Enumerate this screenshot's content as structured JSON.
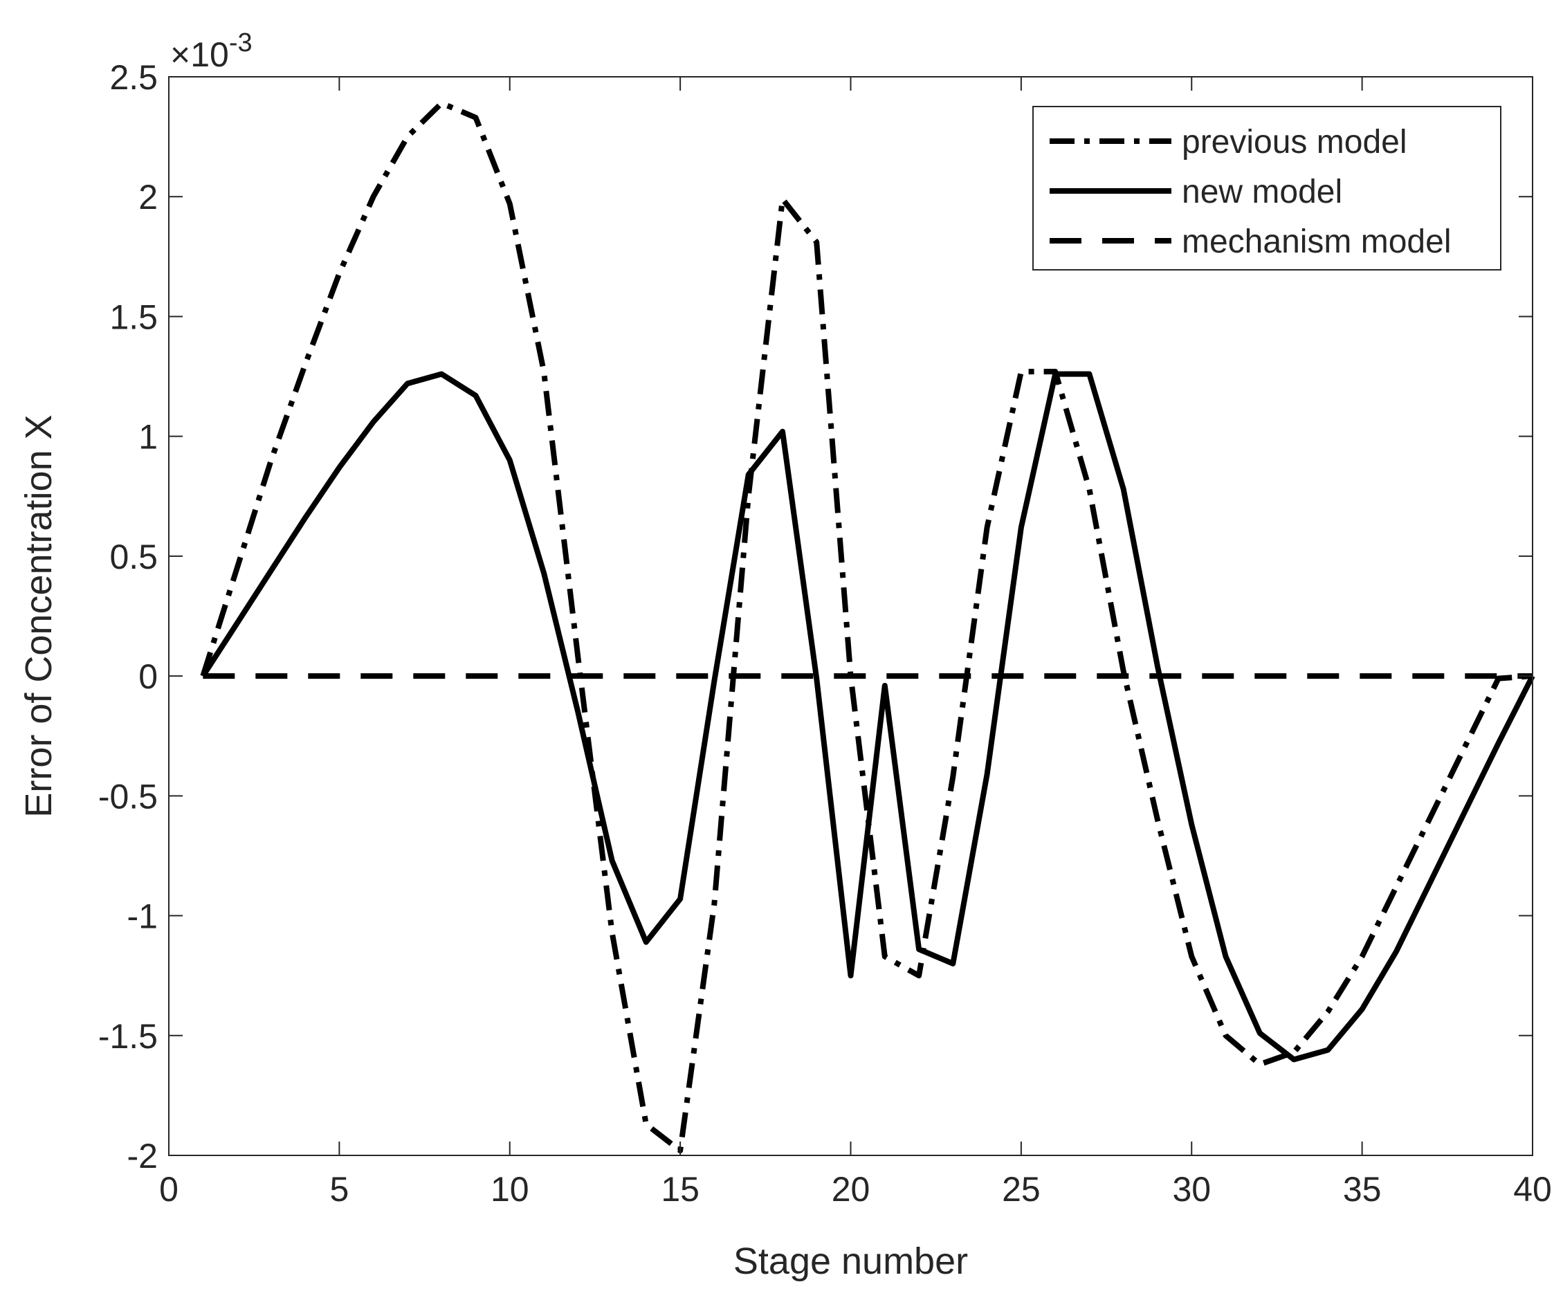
{
  "chart_data": {
    "type": "line",
    "title": "",
    "xlabel": "Stage number",
    "ylabel": "Error of Concentration X",
    "y_exponent": "-3",
    "xlim": [
      0,
      40
    ],
    "ylim": [
      -2,
      2.5
    ],
    "x_ticks": [
      0,
      5,
      10,
      15,
      20,
      25,
      30,
      35,
      40
    ],
    "y_ticks": [
      -2,
      -1.5,
      -1,
      -0.5,
      0,
      0.5,
      1,
      1.5,
      2,
      2.5
    ],
    "grid": false,
    "legend_position": "top-right",
    "series": [
      {
        "name": "previous model",
        "style": "dash-dot",
        "x": [
          1,
          2,
          3,
          4,
          5,
          6,
          7,
          8,
          9,
          10,
          11,
          12,
          13,
          14,
          15,
          16,
          17,
          18,
          19,
          20,
          21,
          22,
          23,
          24,
          25,
          26,
          27,
          28,
          29,
          30,
          31,
          32,
          33,
          34,
          35,
          36,
          37,
          38,
          39,
          40
        ],
        "values": [
          0,
          0.45,
          0.9,
          1.3,
          1.68,
          2.0,
          2.25,
          2.39,
          2.33,
          1.97,
          1.27,
          0.08,
          -1.07,
          -1.87,
          -1.98,
          -0.95,
          0.75,
          1.99,
          1.81,
          0.0,
          -1.17,
          -1.25,
          -0.42,
          0.62,
          1.27,
          1.27,
          0.78,
          0.02,
          -0.6,
          -1.17,
          -1.5,
          -1.62,
          -1.57,
          -1.4,
          -1.17,
          -0.88,
          -0.59,
          -0.3,
          -0.01,
          0
        ]
      },
      {
        "name": "new model",
        "style": "solid",
        "x": [
          1,
          2,
          3,
          4,
          5,
          6,
          7,
          8,
          9,
          10,
          11,
          12,
          13,
          14,
          15,
          16,
          17,
          18,
          19,
          20,
          21,
          22,
          23,
          24,
          25,
          26,
          27,
          28,
          29,
          30,
          31,
          32,
          33,
          34,
          35,
          36,
          37,
          38,
          39,
          40
        ],
        "values": [
          0,
          0.22,
          0.44,
          0.66,
          0.87,
          1.06,
          1.22,
          1.26,
          1.17,
          0.9,
          0.43,
          -0.15,
          -0.77,
          -1.11,
          -0.93,
          -0.02,
          0.84,
          1.02,
          -0.01,
          -1.25,
          -0.04,
          -1.14,
          -1.2,
          -0.41,
          0.62,
          1.26,
          1.26,
          0.78,
          0.04,
          -0.62,
          -1.17,
          -1.49,
          -1.6,
          -1.56,
          -1.39,
          -1.15,
          -0.86,
          -0.57,
          -0.28,
          0
        ]
      },
      {
        "name": "mechanism model",
        "style": "dashed",
        "x": [
          1,
          40
        ],
        "values": [
          0,
          0
        ]
      }
    ]
  }
}
